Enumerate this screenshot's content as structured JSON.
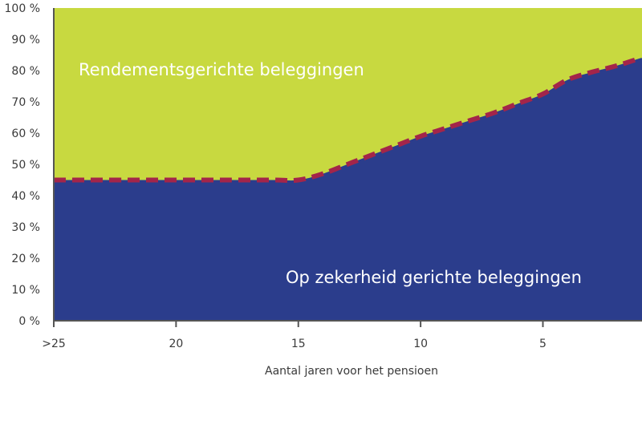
{
  "chart_data": {
    "type": "area",
    "xlabel": "Aantal jaren voor het pensioen",
    "x_ticks": [
      ">25",
      "20",
      "15",
      "10",
      "5"
    ],
    "y_ticks": [
      "0 %",
      "10 %",
      "20 %",
      "30 %",
      "40 %",
      "50 %",
      "60 %",
      "70 %",
      "80 %",
      "90 %",
      "100 %"
    ],
    "ylim": [
      0,
      100
    ],
    "xlim": [
      25,
      1
    ],
    "grid": false,
    "x": [
      25,
      24,
      22,
      20,
      18,
      16,
      15,
      14,
      13,
      12,
      11,
      10,
      9,
      8,
      7,
      6,
      5,
      4,
      3,
      2,
      1
    ],
    "series": [
      {
        "name": "Op zekerheid gerichte beleggingen",
        "values": [
          45,
          45,
          45,
          45,
          45,
          45,
          45,
          47,
          50,
          53,
          56,
          59,
          61.5,
          64,
          66.5,
          69.5,
          72.5,
          77,
          79.5,
          81.5,
          84
        ],
        "color": "#2b3d8c"
      },
      {
        "name": "Rendementsgerichte beleggingen",
        "values": [
          55,
          55,
          55,
          55,
          55,
          55,
          55,
          53,
          50,
          47,
          44,
          41,
          38.5,
          36,
          33.5,
          30.5,
          27.5,
          23,
          20.5,
          18.5,
          16
        ],
        "color": "#c8d940"
      }
    ],
    "boundary_line": {
      "style": "dashed",
      "color": "#a3254a"
    }
  },
  "colors": {
    "safe_area": "#2b3d8c",
    "return_area": "#c8d940",
    "dashed_line": "#a3254a",
    "axis": "#555555"
  }
}
